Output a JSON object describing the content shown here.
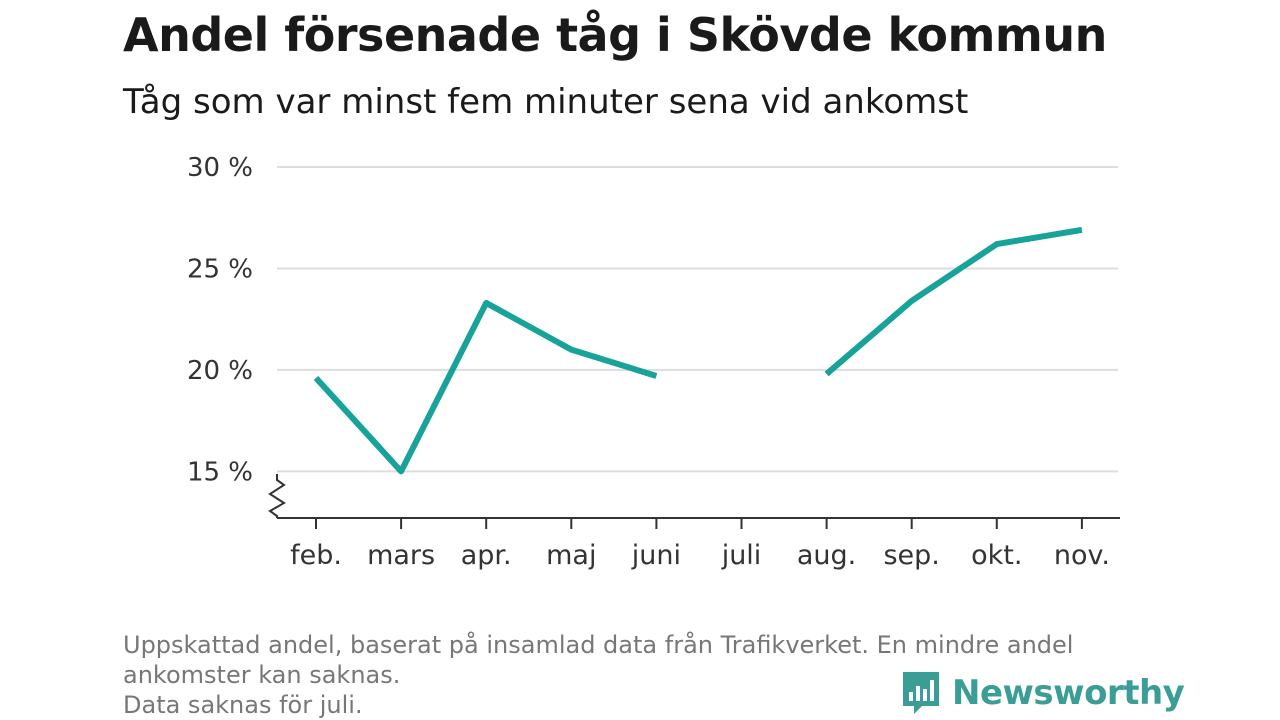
{
  "title": "Andel försenade tåg i Skövde kommun",
  "subtitle": "Tåg som var minst fem minuter sena vid ankomst",
  "footnote": {
    "line1": "Uppskattad andel, baserat på insamlad data från Trafikverket. En mindre andel",
    "line2": "ankomster kan saknas.",
    "line3": "Data saknas för juli."
  },
  "brand": {
    "name": "Newsworthy",
    "icon": "newsworthy-logo-icon"
  },
  "colors": {
    "line": "#17a39a",
    "grid": "#dddddd",
    "axis": "#333333",
    "brand": "#3a9e96"
  },
  "chart_data": {
    "type": "line",
    "categories": [
      "feb.",
      "mars",
      "apr.",
      "maj",
      "juni",
      "juli",
      "aug.",
      "sep.",
      "okt.",
      "nov."
    ],
    "series": [
      {
        "values": [
          19.6,
          15.0,
          23.3,
          21.0,
          19.7,
          null,
          19.8,
          23.4,
          26.2,
          26.9
        ]
      }
    ],
    "y_ticks": [
      {
        "value": 15,
        "label": "15 %"
      },
      {
        "value": 20,
        "label": "20 %"
      },
      {
        "value": 25,
        "label": "25 %"
      },
      {
        "value": 30,
        "label": "30 %"
      }
    ],
    "ylim": [
      12.7,
      30
    ],
    "y_axis_break": true,
    "grid": true,
    "legend": "none"
  }
}
